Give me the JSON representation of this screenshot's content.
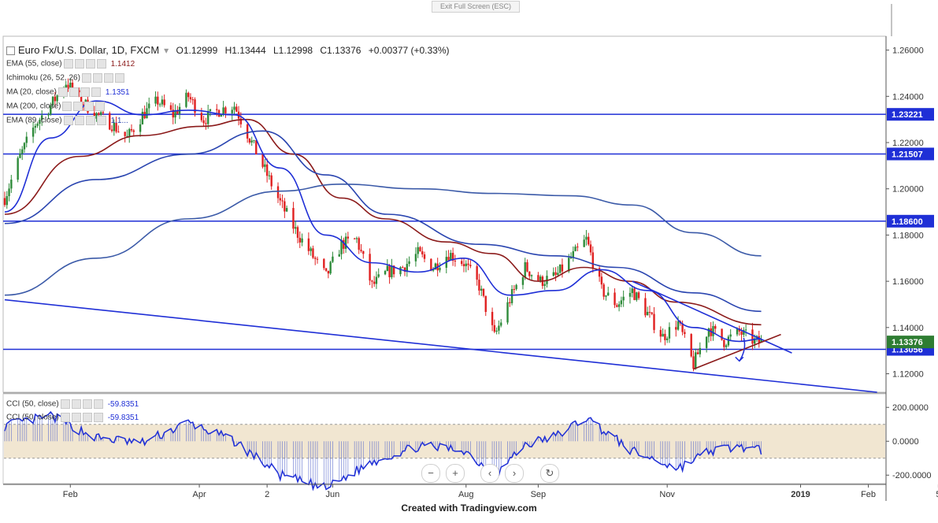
{
  "toolbar": {
    "exit_fullscreen": "Exit Full Screen (ESC)"
  },
  "header": {
    "symbol": "Euro Fx/U.S. Dollar, 1D, FXCM",
    "open": "O1.12999",
    "high": "H1.13444",
    "low": "L1.12998",
    "close": "C1.13376",
    "change": "+0.00377 (+0.33%)"
  },
  "indicators": [
    {
      "label": "EMA (55, close)",
      "value": "1.1412",
      "color": "#8b1a1a"
    },
    {
      "label": "Ichimoku (26, 52, 26)",
      "value": "",
      "color": "#888888"
    },
    {
      "label": "MA (20, close)",
      "value": "1.1351",
      "color": "#1f2fd6"
    },
    {
      "label": "MA (200, close)",
      "value": "",
      "color": "#3b5aa8"
    },
    {
      "label": "EMA (89, close)",
      "value": "1.1...",
      "color": "#2a45b0"
    }
  ],
  "cci_legend": [
    {
      "label": "CCI (50, close)",
      "value": "-59.8351"
    },
    {
      "label": "CCI (50, close)",
      "value": "-59.8351"
    }
  ],
  "footer": "Created with Tradingview.com",
  "chart_data": {
    "type": "candlestick",
    "title": "Euro Fx/U.S. Dollar, 1D, FXCM",
    "ylim": [
      1.112,
      1.266
    ],
    "y_ticks": [
      1.26,
      1.24,
      1.22,
      1.2,
      1.18,
      1.16,
      1.14,
      1.12
    ],
    "y_tick_labels": [
      "1.26000",
      "1.24000",
      "1.22000",
      "1.20000",
      "1.18000",
      "1.16000",
      "1.14000",
      "1.12000"
    ],
    "x_labels": [
      "Feb",
      "Apr",
      "2",
      "Jun",
      "Aug",
      "Sep",
      "Nov",
      "2019",
      "Feb",
      "5"
    ],
    "horizontal_levels": [
      {
        "value": 1.23221,
        "label": "1.23221"
      },
      {
        "value": 1.21507,
        "label": "1.21507"
      },
      {
        "value": 1.186,
        "label": "1.18600"
      },
      {
        "value": 1.13056,
        "label": "1.13056"
      }
    ],
    "last_price": {
      "value": 1.13376,
      "label": "1.13376"
    },
    "price_path": [
      [
        "2018-01-02",
        1.196
      ],
      [
        "2018-01-09",
        1.214
      ],
      [
        "2018-01-16",
        1.228
      ],
      [
        "2018-01-23",
        1.236
      ],
      [
        "2018-01-30",
        1.246
      ],
      [
        "2018-02-06",
        1.238
      ],
      [
        "2018-02-13",
        1.232
      ],
      [
        "2018-02-20",
        1.228
      ],
      [
        "2018-02-27",
        1.222
      ],
      [
        "2018-03-06",
        1.232
      ],
      [
        "2018-03-13",
        1.238
      ],
      [
        "2018-03-20",
        1.232
      ],
      [
        "2018-03-27",
        1.24
      ],
      [
        "2018-04-03",
        1.23
      ],
      [
        "2018-04-10",
        1.234
      ],
      [
        "2018-04-17",
        1.236
      ],
      [
        "2018-04-24",
        1.222
      ],
      [
        "2018-05-01",
        1.208
      ],
      [
        "2018-05-08",
        1.194
      ],
      [
        "2018-05-15",
        1.182
      ],
      [
        "2018-05-22",
        1.172
      ],
      [
        "2018-05-29",
        1.162
      ],
      [
        "2018-06-05",
        1.176
      ],
      [
        "2018-06-12",
        1.178
      ],
      [
        "2018-06-19",
        1.158
      ],
      [
        "2018-06-26",
        1.164
      ],
      [
        "2018-07-03",
        1.166
      ],
      [
        "2018-07-10",
        1.172
      ],
      [
        "2018-07-17",
        1.166
      ],
      [
        "2018-07-24",
        1.172
      ],
      [
        "2018-07-31",
        1.168
      ],
      [
        "2018-08-07",
        1.158
      ],
      [
        "2018-08-14",
        1.136
      ],
      [
        "2018-08-21",
        1.152
      ],
      [
        "2018-08-28",
        1.166
      ],
      [
        "2018-09-04",
        1.16
      ],
      [
        "2018-09-11",
        1.162
      ],
      [
        "2018-09-18",
        1.17
      ],
      [
        "2018-09-25",
        1.178
      ],
      [
        "2018-10-02",
        1.156
      ],
      [
        "2018-10-09",
        1.15
      ],
      [
        "2018-10-16",
        1.156
      ],
      [
        "2018-10-23",
        1.146
      ],
      [
        "2018-10-30",
        1.136
      ],
      [
        "2018-11-06",
        1.142
      ],
      [
        "2018-11-13",
        1.124
      ],
      [
        "2018-11-20",
        1.14
      ],
      [
        "2018-11-27",
        1.134
      ],
      [
        "2018-12-04",
        1.138
      ],
      [
        "2018-12-11",
        1.134
      ],
      [
        "2018-12-14",
        1.13376
      ]
    ],
    "series": [
      {
        "name": "EMA (55, close)",
        "color": "#8b1a1a",
        "values": [
          [
            "2018-01-02",
            1.189
          ],
          [
            "2018-02-05",
            1.214
          ],
          [
            "2018-03-05",
            1.223
          ],
          [
            "2018-04-02",
            1.227
          ],
          [
            "2018-04-23",
            1.23
          ],
          [
            "2018-05-14",
            1.215
          ],
          [
            "2018-06-05",
            1.196
          ],
          [
            "2018-06-25",
            1.187
          ],
          [
            "2018-07-23",
            1.177
          ],
          [
            "2018-08-13",
            1.172
          ],
          [
            "2018-09-03",
            1.16
          ],
          [
            "2018-09-24",
            1.166
          ],
          [
            "2018-10-15",
            1.16
          ],
          [
            "2018-11-05",
            1.151
          ],
          [
            "2018-12-14",
            1.1412
          ]
        ]
      },
      {
        "name": "MA (20, close)",
        "color": "#1f2fd6",
        "values": [
          [
            "2018-01-02",
            1.19
          ],
          [
            "2018-01-23",
            1.222
          ],
          [
            "2018-02-13",
            1.238
          ],
          [
            "2018-03-06",
            1.232
          ],
          [
            "2018-03-27",
            1.234
          ],
          [
            "2018-04-17",
            1.232
          ],
          [
            "2018-05-08",
            1.209
          ],
          [
            "2018-05-29",
            1.18
          ],
          [
            "2018-06-19",
            1.168
          ],
          [
            "2018-07-10",
            1.164
          ],
          [
            "2018-07-31",
            1.17
          ],
          [
            "2018-08-21",
            1.154
          ],
          [
            "2018-09-11",
            1.156
          ],
          [
            "2018-10-02",
            1.165
          ],
          [
            "2018-10-23",
            1.156
          ],
          [
            "2018-11-13",
            1.14
          ],
          [
            "2018-12-04",
            1.134
          ],
          [
            "2018-12-14",
            1.1351
          ]
        ]
      },
      {
        "name": "EMA (89, close)",
        "color": "#2a45b0",
        "values": [
          [
            "2018-01-02",
            1.185
          ],
          [
            "2018-02-13",
            1.204
          ],
          [
            "2018-03-27",
            1.215
          ],
          [
            "2018-04-30",
            1.225
          ],
          [
            "2018-05-29",
            1.206
          ],
          [
            "2018-06-26",
            1.189
          ],
          [
            "2018-08-07",
            1.176
          ],
          [
            "2018-09-11",
            1.171
          ],
          [
            "2018-10-09",
            1.166
          ],
          [
            "2018-11-13",
            1.155
          ],
          [
            "2018-12-14",
            1.147
          ]
        ]
      },
      {
        "name": "MA (200, close)",
        "color": "#3b5aa8",
        "values": [
          [
            "2018-01-02",
            1.154
          ],
          [
            "2018-02-13",
            1.17
          ],
          [
            "2018-03-27",
            1.187
          ],
          [
            "2018-05-08",
            1.199
          ],
          [
            "2018-06-05",
            1.202
          ],
          [
            "2018-07-10",
            1.2
          ],
          [
            "2018-08-14",
            1.198
          ],
          [
            "2018-09-18",
            1.197
          ],
          [
            "2018-10-16",
            1.193
          ],
          [
            "2018-11-13",
            1.181
          ],
          [
            "2018-12-14",
            1.171
          ]
        ]
      }
    ],
    "trendlines": [
      {
        "from": [
          "2018-01-02",
          1.152
        ],
        "to": [
          "2019-02-05",
          1.112
        ],
        "color": "#1f2fd6"
      },
      {
        "from": [
          "2018-10-16",
          1.16
        ],
        "to": [
          "2018-12-28",
          1.129
        ],
        "color": "#1f2fd6"
      },
      {
        "from": [
          "2018-11-13",
          1.122
        ],
        "to": [
          "2018-12-23",
          1.137
        ],
        "color": "#8b1a1a"
      }
    ],
    "cci": {
      "name": "CCI (50, close)",
      "last_value": -59.8351,
      "y_ticks": [
        200,
        0,
        -200
      ],
      "y_tick_labels": [
        "200.0000",
        "0.0000",
        "-200.0000"
      ],
      "band": [
        -100,
        100
      ],
      "values": [
        [
          "2018-01-02",
          90
        ],
        [
          "2018-01-23",
          150
        ],
        [
          "2018-02-13",
          20
        ],
        [
          "2018-03-06",
          -10
        ],
        [
          "2018-03-27",
          110
        ],
        [
          "2018-04-17",
          0
        ],
        [
          "2018-05-08",
          -200
        ],
        [
          "2018-05-29",
          -280
        ],
        [
          "2018-06-19",
          -120
        ],
        [
          "2018-07-10",
          -30
        ],
        [
          "2018-07-31",
          -50
        ],
        [
          "2018-08-14",
          -200
        ],
        [
          "2018-08-28",
          -20
        ],
        [
          "2018-09-11",
          30
        ],
        [
          "2018-09-25",
          140
        ],
        [
          "2018-10-16",
          -60
        ],
        [
          "2018-11-06",
          -160
        ],
        [
          "2018-11-20",
          -60
        ],
        [
          "2018-12-04",
          -30
        ],
        [
          "2018-12-14",
          -59.8351
        ]
      ]
    }
  }
}
